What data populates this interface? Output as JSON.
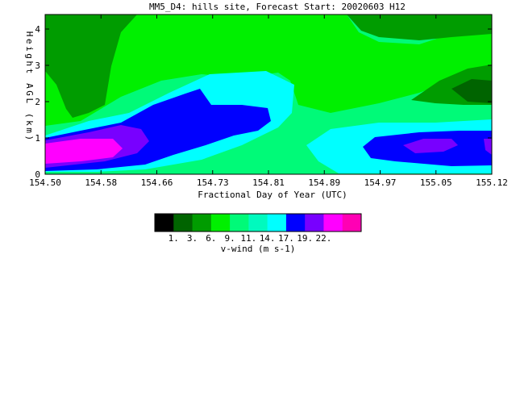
{
  "chart_data": {
    "type": "heatmap",
    "title": "MM5_D4: hills site,  Forecast Start: 20020603 H12",
    "xlabel": "Fractional Day of Year (UTC)",
    "ylabel": "Height AGL (km)",
    "x_ticks": [
      "154.50",
      "154.58",
      "154.66",
      "154.73",
      "154.81",
      "154.89",
      "154.97",
      "155.05",
      "155.12"
    ],
    "y_ticks": [
      "0",
      "1",
      "2",
      "3",
      "4"
    ],
    "xlim": [
      154.5,
      155.12
    ],
    "ylim": [
      0,
      4.4
    ],
    "colorbar": {
      "label": "v-wind (m s-1)",
      "tick_labels": [
        "1.",
        "3.",
        "6.",
        "9.",
        "11.",
        "14.",
        "17.",
        "19.",
        "22."
      ],
      "levels": [
        1,
        3,
        6,
        9,
        11,
        14,
        17,
        19,
        22
      ],
      "colors": [
        "#000000",
        "#006400",
        "#009c00",
        "#00f000",
        "#00fa78",
        "#00fabe",
        "#00ffff",
        "#0000ff",
        "#7800ff",
        "#ff00ff",
        "#ff00b4"
      ]
    },
    "regions": [
      {
        "level_color": "#00fa78",
        "value": "9-11",
        "note": "background field"
      },
      {
        "level_color": "#00f000",
        "value": "6-9",
        "x_range": [
          154.5,
          154.97
        ],
        "y_range": [
          1.6,
          4.4
        ]
      },
      {
        "level_color": "#009c00",
        "value": "3-6",
        "x_range": [
          154.5,
          154.63
        ],
        "y_range": [
          1.6,
          4.4
        ]
      },
      {
        "level_color": "#009c00",
        "value": "3-6",
        "x_range": [
          154.97,
          155.12
        ],
        "y_range": [
          3.6,
          4.4
        ]
      },
      {
        "level_color": "#009c00",
        "value": "3-6",
        "x_range": [
          155.02,
          155.12
        ],
        "y_range": [
          1.9,
          2.7
        ]
      },
      {
        "level_color": "#006400",
        "value": "1-3",
        "x_range": [
          155.06,
          155.12
        ],
        "y_range": [
          2.1,
          2.5
        ]
      },
      {
        "level_color": "#00ffff",
        "value": "11-14",
        "x_range": [
          154.5,
          154.85
        ],
        "y_range": [
          0.1,
          2.6
        ]
      },
      {
        "level_color": "#00ffff",
        "value": "11-14",
        "x_range": [
          154.86,
          155.12
        ],
        "y_range": [
          0.1,
          1.4
        ]
      },
      {
        "level_color": "#0000ff",
        "value": "14-17",
        "x_range": [
          154.5,
          154.81
        ],
        "y_range": [
          0.1,
          2.3
        ]
      },
      {
        "level_color": "#0000ff",
        "value": "14-17",
        "x_range": [
          154.95,
          155.12
        ],
        "y_range": [
          0.3,
          1.2
        ]
      },
      {
        "level_color": "#7800ff",
        "value": "17-19",
        "x_range": [
          154.5,
          154.63
        ],
        "y_range": [
          0.2,
          1.4
        ]
      },
      {
        "level_color": "#7800ff",
        "value": "17-19",
        "x_range": [
          155.0,
          155.07
        ],
        "y_range": [
          0.6,
          1.0
        ]
      },
      {
        "level_color": "#7800ff",
        "value": "17-19",
        "x_range": [
          155.11,
          155.12
        ],
        "y_range": [
          0.5,
          1.0
        ]
      },
      {
        "level_color": "#ff00ff",
        "value": "19-22",
        "x_range": [
          154.5,
          154.59
        ],
        "y_range": [
          0.4,
          1.0
        ]
      }
    ]
  }
}
